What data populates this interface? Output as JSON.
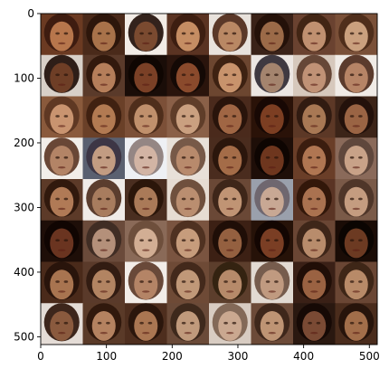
{
  "image": {
    "description_hidden": "",
    "grid": {
      "rows": 8,
      "cols": 8
    },
    "extent": [
      0,
      512,
      512,
      0
    ],
    "background": "#ffffff",
    "axis_color": "#000000"
  },
  "axes": {
    "x_ticks": [
      {
        "value": 0,
        "label": "0"
      },
      {
        "value": 100,
        "label": "100"
      },
      {
        "value": 200,
        "label": "200"
      },
      {
        "value": 300,
        "label": "300"
      },
      {
        "value": 400,
        "label": "400"
      },
      {
        "value": 500,
        "label": "500"
      }
    ],
    "y_ticks": [
      {
        "value": 0,
        "label": "0"
      },
      {
        "value": 100,
        "label": "100"
      },
      {
        "value": 200,
        "label": "200"
      },
      {
        "value": 300,
        "label": "300"
      },
      {
        "value": 400,
        "label": "400"
      },
      {
        "value": 500,
        "label": "500"
      }
    ]
  },
  "tiles": [
    {
      "bg": "#6b3a22",
      "face": "#b7764c",
      "hair": "#3a1a0e"
    },
    {
      "bg": "#4a2a1a",
      "face": "#a8724a",
      "hair": "#2a140a"
    },
    {
      "bg": "#f2ece6",
      "face": "#7a4a30",
      "hair": "#1e0c06"
    },
    {
      "bg": "#5a3322",
      "face": "#c58d63",
      "hair": "#3a1c10"
    },
    {
      "bg": "#e8e2dc",
      "face": "#b98864",
      "hair": "#4a2614"
    },
    {
      "bg": "#3a2218",
      "face": "#9b6a48",
      "hair": "#221008"
    },
    {
      "bg": "#6a4230",
      "face": "#c09070",
      "hair": "#3e2212"
    },
    {
      "bg": "#7a5038",
      "face": "#caa07e",
      "hair": "#4a2a18"
    },
    {
      "bg": "#d8d0c8",
      "face": "#6e3e26",
      "hair": "#1c0a04"
    },
    {
      "bg": "#5a3a2a",
      "face": "#b57e5a",
      "hair": "#2e160a"
    },
    {
      "bg": "#1a0d08",
      "face": "#7a4026",
      "hair": "#0e0502"
    },
    {
      "bg": "#2a140c",
      "face": "#8a4a2c",
      "hair": "#120804"
    },
    {
      "bg": "#6c4630",
      "face": "#c8936c",
      "hair": "#3a1e10"
    },
    {
      "bg": "#ece6e2",
      "face": "#a4846e",
      "hair": "#2c2630"
    },
    {
      "bg": "#d6c8bc",
      "face": "#c09276",
      "hair": "#5a3828"
    },
    {
      "bg": "#f0ebe6",
      "face": "#b68466",
      "hair": "#4a2818"
    },
    {
      "bg": "#8a5a3c",
      "face": "#c99470",
      "hair": "#5a3420"
    },
    {
      "bg": "#6a4028",
      "face": "#b27a52",
      "hair": "#3c1e0e"
    },
    {
      "bg": "#7c5038",
      "face": "#c0906c",
      "hair": "#4a2a18"
    },
    {
      "bg": "#8a6048",
      "face": "#caa080",
      "hair": "#5a3a26"
    },
    {
      "bg": "#4a2a1c",
      "face": "#a06644",
      "hair": "#26120a"
    },
    {
      "bg": "#2a1208",
      "face": "#7c3e22",
      "hair": "#160804"
    },
    {
      "bg": "#5c3826",
      "face": "#a87854",
      "hair": "#2c1810"
    },
    {
      "bg": "#3c2418",
      "face": "#9a6444",
      "hair": "#20100a"
    },
    {
      "bg": "#f2eee9",
      "face": "#b38466",
      "hair": "#5a3422"
    },
    {
      "bg": "#5a6070",
      "face": "#c29c82",
      "hair": "#3a3240"
    },
    {
      "bg": "#eef0f4",
      "face": "#d2b4a4",
      "hair": "#8a7a78"
    },
    {
      "bg": "#e8e0d8",
      "face": "#b88a6c",
      "hair": "#6a4a38"
    },
    {
      "bg": "#4a2c1e",
      "face": "#a46c48",
      "hair": "#28140a"
    },
    {
      "bg": "#1e0e08",
      "face": "#6e361e",
      "hair": "#0c0402"
    },
    {
      "bg": "#6a3e28",
      "face": "#b07652",
      "hair": "#361a0c"
    },
    {
      "bg": "#8a6a5a",
      "face": "#c8a288",
      "hair": "#5a4438"
    },
    {
      "bg": "#5c3a28",
      "face": "#b07a56",
      "hair": "#2c160a"
    },
    {
      "bg": "#f0ebe7",
      "face": "#a87c5e",
      "hair": "#4a2a1a"
    },
    {
      "bg": "#4a2e20",
      "face": "#aa7a58",
      "hair": "#281408"
    },
    {
      "bg": "#e6dcd2",
      "face": "#ba8e70",
      "hair": "#62402c"
    },
    {
      "bg": "#6a4836",
      "face": "#c09474",
      "hair": "#3a2216"
    },
    {
      "bg": "#9aa0ac",
      "face": "#c8a894",
      "hair": "#6a6068"
    },
    {
      "bg": "#5a3424",
      "face": "#aa7250",
      "hair": "#2e1408"
    },
    {
      "bg": "#7a5a48",
      "face": "#c49c80",
      "hair": "#4a3226"
    },
    {
      "bg": "#1e0e08",
      "face": "#6a3420",
      "hair": "#0e0402"
    },
    {
      "bg": "#6a4a3a",
      "face": "#b4907a",
      "hair": "#3c2a22"
    },
    {
      "bg": "#8a6a58",
      "face": "#d2ae94",
      "hair": "#6a4c3a"
    },
    {
      "bg": "#7a5440",
      "face": "#c69c7c",
      "hair": "#4a2e1e"
    },
    {
      "bg": "#3c2014",
      "face": "#946040",
      "hair": "#1c0c06"
    },
    {
      "bg": "#261208",
      "face": "#7a3e24",
      "hair": "#120602"
    },
    {
      "bg": "#6a4634",
      "face": "#b88c6c",
      "hair": "#3a2216"
    },
    {
      "bg": "#1a0c06",
      "face": "#6c3a22",
      "hair": "#0a0402"
    },
    {
      "bg": "#4a2a1a",
      "face": "#a87450",
      "hair": "#26120a"
    },
    {
      "bg": "#5a3a2a",
      "face": "#b28462",
      "hair": "#2e1a10"
    },
    {
      "bg": "#f2ede8",
      "face": "#b48466",
      "hair": "#5a3626"
    },
    {
      "bg": "#6e4a36",
      "face": "#c09878",
      "hair": "#3e2618"
    },
    {
      "bg": "#5c3e2c",
      "face": "#b68a6a",
      "hair": "#30200e"
    },
    {
      "bg": "#e2dad2",
      "face": "#c09a80",
      "hair": "#6a4e3e"
    },
    {
      "bg": "#3a2016",
      "face": "#9a6242",
      "hair": "#1e0c06"
    },
    {
      "bg": "#6a4634",
      "face": "#b88a68",
      "hair": "#3a2214"
    },
    {
      "bg": "#e4dcd6",
      "face": "#8a5a3e",
      "hair": "#2a1208"
    },
    {
      "bg": "#5a3a28",
      "face": "#b48260",
      "hair": "#2c160a"
    },
    {
      "bg": "#4e2e1e",
      "face": "#aa7652",
      "hair": "#28140a"
    },
    {
      "bg": "#6a4a38",
      "face": "#c09a7c",
      "hair": "#3a261a"
    },
    {
      "bg": "#d8ccc2",
      "face": "#caa890",
      "hair": "#7a5e4c"
    },
    {
      "bg": "#6c4a38",
      "face": "#be9474",
      "hair": "#3a2418"
    },
    {
      "bg": "#2a1810",
      "face": "#7a4a34",
      "hair": "#140804"
    },
    {
      "bg": "#4a2c1c",
      "face": "#a26e4a",
      "hair": "#24120a"
    }
  ]
}
